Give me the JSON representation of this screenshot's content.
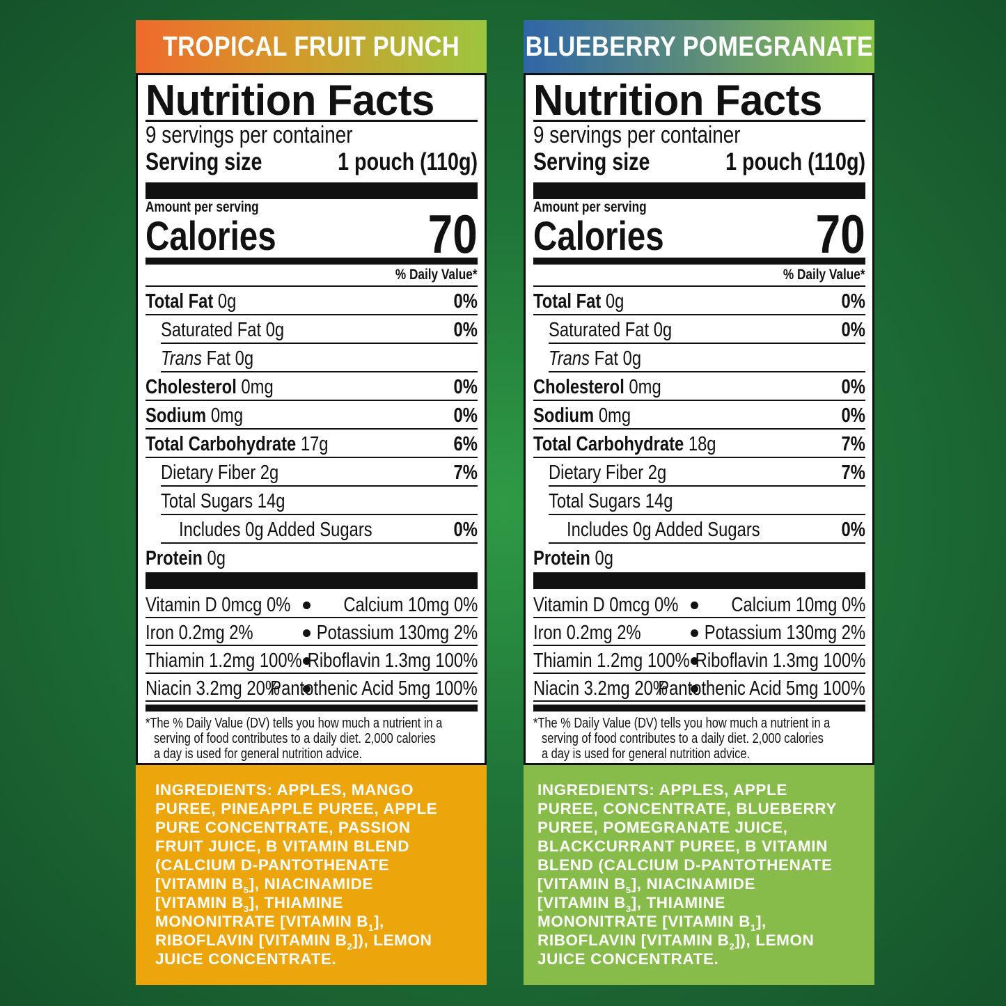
{
  "panels": [
    {
      "flavor": "TROPICAL FRUIT PUNCH",
      "label_title": "Nutrition Facts",
      "servings_per_container": "9 servings per container",
      "serving_size_label": "Serving size",
      "serving_size_value": "1 pouch (110g)",
      "amount_per_serving": "Amount per serving",
      "calories_label": "Calories",
      "calories_value": "70",
      "daily_value_header": "% Daily Value*",
      "nutrients": {
        "total_fat": {
          "name": "Total Fat",
          "amount": "0g",
          "dv": "0%"
        },
        "saturated_fat": {
          "name": "Saturated Fat 0g",
          "dv": "0%"
        },
        "trans_fat": {
          "name_italic": "Trans",
          "name_rest": " Fat 0g"
        },
        "cholesterol": {
          "name": "Cholesterol",
          "amount": "0mg",
          "dv": "0%"
        },
        "sodium": {
          "name": "Sodium",
          "amount": "0mg",
          "dv": "0%"
        },
        "total_carbohydrate": {
          "name": "Total Carbohydrate",
          "amount": "17g",
          "dv": "6%"
        },
        "dietary_fiber": {
          "name": "Dietary Fiber 2g",
          "dv": "7%"
        },
        "total_sugars": {
          "name": "Total Sugars 14g"
        },
        "added_sugars": {
          "name": "Includes 0g Added Sugars",
          "dv": "0%"
        },
        "protein": {
          "name": "Protein",
          "amount": "0g"
        }
      },
      "vitamins": [
        {
          "left": "Vitamin D 0mcg 0%",
          "right": "Calcium 10mg 0%"
        },
        {
          "left": "Iron 0.2mg 2%",
          "right": "Potassium 130mg 2%"
        },
        {
          "left": "Thiamin 1.2mg 100%",
          "right": "Riboflavin 1.3mg 100%"
        },
        {
          "left": "Niacin 3.2mg 20%",
          "right": "Pantothenic Acid 5mg 100%"
        }
      ],
      "footnote": [
        "*The % Daily Value (DV) tells you how much a nutrient in a",
        "serving of food contributes to a daily diet. 2,000 calories",
        "a day is used for general nutrition advice."
      ],
      "ingredients_heading": "INGREDIENTS:",
      "ingredients_lines": [
        " APPLES, MANGO",
        "PUREE, PINEAPPLE PUREE, APPLE",
        "PURE CONCENTRATE, PASSION",
        "FRUIT JUICE, B VITAMIN BLEND",
        "(CALCIUM D-PANTOTHENATE",
        "[VITAMIN B",
        "], NIACINAMIDE",
        "[VITAMIN B",
        "], THIAMINE",
        "MONONITRATE [VITAMIN B",
        "],",
        "RIBOFLAVIN [VITAMIN B",
        "]), LEMON",
        "JUICE CONCENTRATE."
      ],
      "subscripts": [
        "5",
        "3",
        "1",
        "2"
      ],
      "banner_colors": [
        "#ef6a2b",
        "#9cc53e"
      ],
      "ingredients_bg": "#eda50c"
    },
    {
      "flavor": "BLUEBERRY POMEGRANATE",
      "label_title": "Nutrition Facts",
      "servings_per_container": "9 servings per container",
      "serving_size_label": "Serving size",
      "serving_size_value": "1 pouch (110g)",
      "amount_per_serving": "Amount per serving",
      "calories_label": "Calories",
      "calories_value": "70",
      "daily_value_header": "% Daily Value*",
      "nutrients": {
        "total_fat": {
          "name": "Total Fat",
          "amount": "0g",
          "dv": "0%"
        },
        "saturated_fat": {
          "name": "Saturated Fat 0g",
          "dv": "0%"
        },
        "trans_fat": {
          "name_italic": "Trans",
          "name_rest": " Fat 0g"
        },
        "cholesterol": {
          "name": "Cholesterol",
          "amount": "0mg",
          "dv": "0%"
        },
        "sodium": {
          "name": "Sodium",
          "amount": "0mg",
          "dv": "0%"
        },
        "total_carbohydrate": {
          "name": "Total Carbohydrate",
          "amount": "18g",
          "dv": "7%"
        },
        "dietary_fiber": {
          "name": "Dietary Fiber 2g",
          "dv": "7%"
        },
        "total_sugars": {
          "name": "Total Sugars 14g"
        },
        "added_sugars": {
          "name": "Includes 0g Added Sugars",
          "dv": "0%"
        },
        "protein": {
          "name": "Protein",
          "amount": "0g"
        }
      },
      "vitamins": [
        {
          "left": "Vitamin D 0mcg 0%",
          "right": "Calcium 10mg 0%"
        },
        {
          "left": "Iron 0.2mg 2%",
          "right": "Potassium 130mg 2%"
        },
        {
          "left": "Thiamin 1.2mg 100%",
          "right": "Riboflavin 1.3mg 100%"
        },
        {
          "left": "Niacin 3.2mg 20%",
          "right": "Pantothenic Acid 5mg 100%"
        }
      ],
      "footnote": [
        "*The % Daily Value (DV) tells you how much a nutrient in a",
        "serving of food contributes to a daily diet. 2,000 calories",
        "a day is used for general nutrition advice."
      ],
      "ingredients_heading": "INGREDIENTS:",
      "ingredients_lines": [
        " APPLES, APPLE",
        "PUREE, CONCENTRATE, BLUEBERRY",
        "PUREE, POMEGRANATE JUICE,",
        "BLACKCURRANT PUREE, B VITAMIN",
        "BLEND (CALCIUM D-PANTOTHENATE",
        "[VITAMIN B",
        "], NIACINAMIDE",
        "[VITAMIN B",
        "], THIAMINE",
        "MONONITRATE [VITAMIN B",
        "],",
        "RIBOFLAVIN [VITAMIN B",
        "]), LEMON",
        "JUICE CONCENTRATE."
      ],
      "subscripts": [
        "5",
        "3",
        "1",
        "2"
      ],
      "banner_colors": [
        "#2f66a8",
        "#8cc449"
      ],
      "ingredients_bg": "#87bc4a"
    }
  ]
}
